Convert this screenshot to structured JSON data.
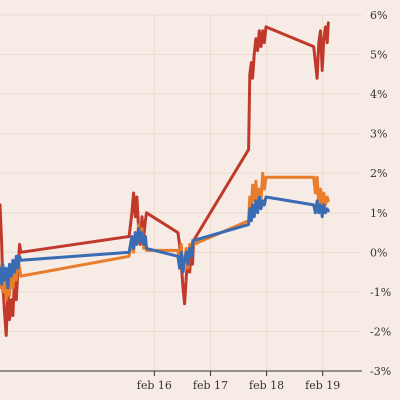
{
  "chart_data": {
    "type": "line",
    "title": "",
    "xlabel": "",
    "ylabel": "",
    "x_ticks": [
      {
        "t": 2.0,
        "label": "feb 16"
      },
      {
        "t": 3.0,
        "label": "feb 17"
      },
      {
        "t": 4.0,
        "label": "feb 18"
      },
      {
        "t": 5.0,
        "label": "feb 19"
      }
    ],
    "xlim": [
      -0.75,
      5.7
    ],
    "ylim": [
      -3,
      6
    ],
    "y_ticks": [
      {
        "v": 6,
        "label": "6%"
      },
      {
        "v": 5,
        "label": "5%"
      },
      {
        "v": 4,
        "label": "4%"
      },
      {
        "v": 3,
        "label": "3%"
      },
      {
        "v": 2,
        "label": "2%"
      },
      {
        "v": 1,
        "label": "1%"
      },
      {
        "v": 0,
        "label": "0%"
      },
      {
        "v": -1,
        "label": "-1%"
      },
      {
        "v": -2,
        "label": "-2%"
      },
      {
        "v": -3,
        "label": "-3%"
      }
    ],
    "grid": true,
    "colors": {
      "background": "#f7ebe5",
      "grid": "#eedad0",
      "axis": "#333333"
    },
    "series": [
      {
        "color": "#c0392b",
        "points": [
          [
            -0.75,
            1.2
          ],
          [
            -0.72,
            0.2
          ],
          [
            -0.7,
            -0.8
          ],
          [
            -0.67,
            -1.5
          ],
          [
            -0.64,
            -2.1
          ],
          [
            -0.61,
            -1.0
          ],
          [
            -0.58,
            -1.7
          ],
          [
            -0.55,
            -1.2
          ],
          [
            -0.52,
            -1.6
          ],
          [
            -0.49,
            -0.6
          ],
          [
            -0.46,
            -1.2
          ],
          [
            -0.43,
            -0.4
          ],
          [
            -0.4,
            0.2
          ],
          [
            -0.38,
            0.0
          ],
          [
            1.55,
            0.4
          ],
          [
            1.6,
            1.0
          ],
          [
            1.63,
            1.5
          ],
          [
            1.66,
            0.9
          ],
          [
            1.69,
            1.4
          ],
          [
            1.72,
            0.6
          ],
          [
            1.75,
            0.2
          ],
          [
            1.78,
            0.9
          ],
          [
            1.81,
            0.4
          ],
          [
            1.84,
            0.8
          ],
          [
            1.86,
            1.0
          ],
          [
            2.42,
            0.5
          ],
          [
            2.45,
            0.2
          ],
          [
            2.48,
            -0.3
          ],
          [
            2.51,
            -0.9
          ],
          [
            2.54,
            -1.3
          ],
          [
            2.57,
            -0.6
          ],
          [
            2.6,
            -0.2
          ],
          [
            2.63,
            -0.5
          ],
          [
            2.66,
            0.1
          ],
          [
            2.68,
            -0.3
          ],
          [
            2.7,
            0.3
          ],
          [
            3.68,
            2.6
          ],
          [
            3.7,
            4.5
          ],
          [
            3.73,
            4.8
          ],
          [
            3.75,
            4.4
          ],
          [
            3.78,
            5.0
          ],
          [
            3.81,
            5.4
          ],
          [
            3.84,
            5.1
          ],
          [
            3.87,
            5.6
          ],
          [
            3.9,
            5.2
          ],
          [
            3.93,
            5.6
          ],
          [
            3.96,
            5.3
          ],
          [
            3.99,
            5.7
          ],
          [
            4.84,
            5.2
          ],
          [
            4.87,
            4.8
          ],
          [
            4.9,
            4.4
          ],
          [
            4.93,
            5.3
          ],
          [
            4.96,
            5.6
          ],
          [
            4.99,
            4.6
          ],
          [
            5.02,
            5.4
          ],
          [
            5.05,
            5.7
          ],
          [
            5.08,
            5.3
          ],
          [
            5.1,
            5.8
          ]
        ]
      },
      {
        "color": "#e87d2b",
        "points": [
          [
            -0.75,
            -0.9
          ],
          [
            -0.72,
            -0.3
          ],
          [
            -0.7,
            -1.0
          ],
          [
            -0.67,
            -0.5
          ],
          [
            -0.64,
            -1.2
          ],
          [
            -0.61,
            -0.7
          ],
          [
            -0.58,
            -1.1
          ],
          [
            -0.55,
            -0.4
          ],
          [
            -0.52,
            -0.9
          ],
          [
            -0.49,
            -0.5
          ],
          [
            -0.46,
            -0.7
          ],
          [
            -0.43,
            -0.2
          ],
          [
            -0.4,
            -0.4
          ],
          [
            -0.38,
            -0.6
          ],
          [
            1.55,
            -0.1
          ],
          [
            1.6,
            0.3
          ],
          [
            1.63,
            0.0
          ],
          [
            1.66,
            0.5
          ],
          [
            1.69,
            0.2
          ],
          [
            1.72,
            0.7
          ],
          [
            1.75,
            0.3
          ],
          [
            1.78,
            0.6
          ],
          [
            1.81,
            0.1
          ],
          [
            1.84,
            0.4
          ],
          [
            1.86,
            0.05
          ],
          [
            2.42,
            0.05
          ],
          [
            2.45,
            -0.3
          ],
          [
            2.48,
            0.2
          ],
          [
            2.51,
            -0.5
          ],
          [
            2.54,
            -0.2
          ],
          [
            2.57,
            0.1
          ],
          [
            2.6,
            -0.4
          ],
          [
            2.63,
            0.2
          ],
          [
            2.66,
            -0.1
          ],
          [
            2.68,
            0.3
          ],
          [
            2.7,
            0.2
          ],
          [
            3.68,
            0.8
          ],
          [
            3.7,
            1.4
          ],
          [
            3.73,
            1.1
          ],
          [
            3.75,
            1.7
          ],
          [
            3.78,
            1.3
          ],
          [
            3.81,
            1.8
          ],
          [
            3.84,
            1.2
          ],
          [
            3.87,
            1.6
          ],
          [
            3.9,
            1.3
          ],
          [
            3.93,
            2.0
          ],
          [
            3.96,
            1.6
          ],
          [
            3.99,
            1.9
          ],
          [
            4.84,
            1.9
          ],
          [
            4.87,
            1.5
          ],
          [
            4.9,
            1.9
          ],
          [
            4.93,
            1.2
          ],
          [
            4.96,
            1.6
          ],
          [
            4.99,
            1.1
          ],
          [
            5.02,
            1.5
          ],
          [
            5.05,
            1.2
          ],
          [
            5.08,
            1.4
          ],
          [
            5.1,
            1.3
          ]
        ]
      },
      {
        "color": "#3a6cb3",
        "points": [
          [
            -0.75,
            -0.4
          ],
          [
            -0.72,
            -0.8
          ],
          [
            -0.7,
            -0.3
          ],
          [
            -0.67,
            -0.7
          ],
          [
            -0.64,
            -0.4
          ],
          [
            -0.61,
            -0.9
          ],
          [
            -0.58,
            -0.3
          ],
          [
            -0.55,
            -0.6
          ],
          [
            -0.52,
            -0.2
          ],
          [
            -0.49,
            -0.5
          ],
          [
            -0.46,
            -0.1
          ],
          [
            -0.43,
            -0.4
          ],
          [
            -0.4,
            -0.1
          ],
          [
            -0.38,
            -0.2
          ],
          [
            1.55,
            0.0
          ],
          [
            1.6,
            0.4
          ],
          [
            1.63,
            0.1
          ],
          [
            1.66,
            0.5
          ],
          [
            1.69,
            0.2
          ],
          [
            1.72,
            0.6
          ],
          [
            1.75,
            0.3
          ],
          [
            1.78,
            0.5
          ],
          [
            1.81,
            0.2
          ],
          [
            1.84,
            0.4
          ],
          [
            1.86,
            0.1
          ],
          [
            2.42,
            -0.1
          ],
          [
            2.45,
            -0.4
          ],
          [
            2.48,
            0.0
          ],
          [
            2.51,
            -0.5
          ],
          [
            2.54,
            -0.2
          ],
          [
            2.57,
            0.0
          ],
          [
            2.6,
            -0.3
          ],
          [
            2.63,
            0.1
          ],
          [
            2.66,
            -0.1
          ],
          [
            2.68,
            0.2
          ],
          [
            2.7,
            0.3
          ],
          [
            3.68,
            0.7
          ],
          [
            3.7,
            1.1
          ],
          [
            3.73,
            0.8
          ],
          [
            3.75,
            1.2
          ],
          [
            3.78,
            0.9
          ],
          [
            3.81,
            1.3
          ],
          [
            3.84,
            1.0
          ],
          [
            3.87,
            1.4
          ],
          [
            3.9,
            1.1
          ],
          [
            3.93,
            1.3
          ],
          [
            3.96,
            1.2
          ],
          [
            3.99,
            1.4
          ],
          [
            4.84,
            1.2
          ],
          [
            4.87,
            1.0
          ],
          [
            4.9,
            1.3
          ],
          [
            4.93,
            1.0
          ],
          [
            4.96,
            1.2
          ],
          [
            4.99,
            0.9
          ],
          [
            5.02,
            1.2
          ],
          [
            5.05,
            1.0
          ],
          [
            5.08,
            1.1
          ],
          [
            5.1,
            1.05
          ]
        ]
      }
    ]
  }
}
